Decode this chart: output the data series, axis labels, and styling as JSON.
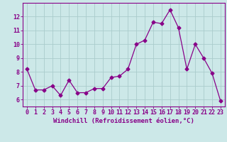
{
  "x": [
    0,
    1,
    2,
    3,
    4,
    5,
    6,
    7,
    8,
    9,
    10,
    11,
    12,
    13,
    14,
    15,
    16,
    17,
    18,
    19,
    20,
    21,
    22,
    23
  ],
  "y": [
    8.2,
    6.7,
    6.7,
    7.0,
    6.3,
    7.4,
    6.5,
    6.5,
    6.8,
    6.8,
    7.6,
    7.7,
    8.2,
    10.0,
    10.3,
    11.6,
    11.5,
    12.5,
    11.2,
    8.2,
    10.0,
    9.0,
    7.9,
    5.9
  ],
  "line_color": "#880088",
  "marker": "D",
  "marker_size": 2.5,
  "bg_color": "#cce8e8",
  "grid_color": "#aacccc",
  "xlabel": "Windchill (Refroidissement éolien,°C)",
  "xlabel_color": "#880088",
  "tick_color": "#880088",
  "ylim": [
    5.5,
    13.0
  ],
  "yticks": [
    6,
    7,
    8,
    9,
    10,
    11,
    12
  ],
  "xlim": [
    -0.5,
    23.5
  ],
  "spine_color": "#880088",
  "label_fontsize": 6.5,
  "tick_fontsize": 6.0
}
